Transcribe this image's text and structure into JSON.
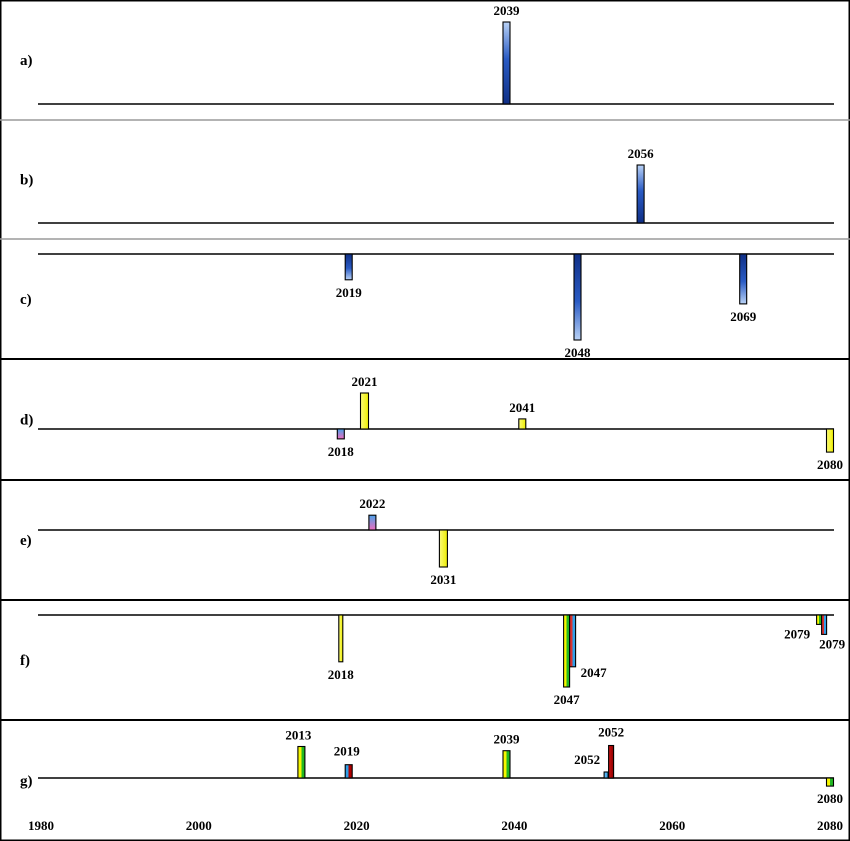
{
  "chart_data": {
    "type": "bar",
    "description_panels": 7,
    "x_axis": {
      "range": [
        1980,
        2080
      ],
      "ticks": [
        1980,
        2000,
        2020,
        2040,
        2060,
        2080
      ],
      "tick_labels": [
        "1980",
        "2000",
        "2020",
        "2040",
        "2060",
        "2080"
      ]
    },
    "palette": {
      "blue": "#2a5bc4",
      "yellow": "#f4f400",
      "green": "#22b822",
      "red": "#b00000",
      "pink": "#f06cbe",
      "lightblue": "#2f9fe8"
    },
    "panels": [
      {
        "label": "a)",
        "bars": [
          {
            "year": 2039,
            "value": 1.0,
            "style": "blue",
            "label": "2039"
          }
        ]
      },
      {
        "label": "b)",
        "bars": [
          {
            "year": 2056,
            "value": 1.0,
            "style": "blue",
            "label": "2056"
          }
        ]
      },
      {
        "label": "c)",
        "bars": [
          {
            "year": 2019,
            "value": -0.3,
            "style": "blue",
            "label": "2019"
          },
          {
            "year": 2048,
            "value": -1.0,
            "style": "blue",
            "label": "2048"
          },
          {
            "year": 2069,
            "value": -0.58,
            "style": "blue",
            "label": "2069"
          }
        ]
      },
      {
        "label": "d)",
        "bars": [
          {
            "year": 2018,
            "value": -0.3,
            "style": "bluepink",
            "label": "2018"
          },
          {
            "year": 2021,
            "value": 1.0,
            "style": "yellow",
            "label": "2021"
          },
          {
            "year": 2041,
            "value": 0.28,
            "style": "yellow",
            "label": "2041"
          },
          {
            "year": 2080,
            "value": -0.7,
            "style": "yellow",
            "label": "2080"
          }
        ]
      },
      {
        "label": "e)",
        "bars": [
          {
            "year": 2022,
            "value": 0.4,
            "style": "bluepink",
            "label": "2022"
          },
          {
            "year": 2031,
            "value": -1.0,
            "style": "yellow",
            "label": "2031"
          }
        ]
      },
      {
        "label": "f)",
        "bars": [
          {
            "year": 2018,
            "value": -0.65,
            "style": "yellow",
            "label": "2018"
          },
          {
            "year": 2047,
            "value": -1.0,
            "style": "yellowgreen",
            "label": "2047"
          },
          {
            "year": 2047,
            "value": -0.72,
            "style": "redblue",
            "label": "2047"
          },
          {
            "year": 2079,
            "value": -0.13,
            "style": "yellowgreen",
            "label": "2079"
          },
          {
            "year": 2079,
            "value": -0.27,
            "style": "redblue",
            "label": "2079"
          }
        ]
      },
      {
        "label": "g)",
        "bars": [
          {
            "year": 2013,
            "value": 0.9,
            "style": "yellowgreen",
            "label": "2013"
          },
          {
            "year": 2019,
            "value": 0.38,
            "style": "bluered",
            "label": "2019"
          },
          {
            "year": 2039,
            "value": 0.78,
            "style": "yellowgreen",
            "label": "2039"
          },
          {
            "year": 2052,
            "value": 0.17,
            "style": "lightblue",
            "label": "2052"
          },
          {
            "year": 2052,
            "value": 0.93,
            "style": "red",
            "label": "2052"
          },
          {
            "year": 2080,
            "value": -0.45,
            "style": "yellowgreen",
            "label": "2080"
          }
        ]
      }
    ]
  }
}
